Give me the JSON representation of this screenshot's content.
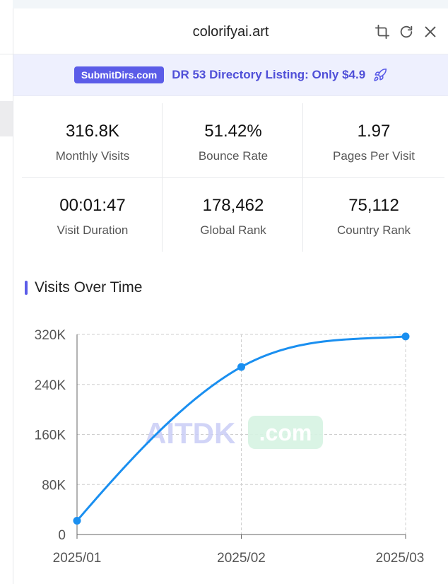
{
  "panel": {
    "title": "colorifyai.art"
  },
  "header_icons": [
    "crop-icon",
    "refresh-icon",
    "close-icon"
  ],
  "banner": {
    "badge": "SubmitDirs.com",
    "text": "DR 53 Directory Listing: Only $4.9",
    "icon": "rocket-icon"
  },
  "stats": [
    {
      "value": "316.8K",
      "label": "Monthly Visits"
    },
    {
      "value": "51.42%",
      "label": "Bounce Rate"
    },
    {
      "value": "1.97",
      "label": "Pages Per Visit"
    },
    {
      "value": "00:01:47",
      "label": "Visit Duration"
    },
    {
      "value": "178,462",
      "label": "Global Rank"
    },
    {
      "value": "75,112",
      "label": "Country Rank"
    }
  ],
  "section": {
    "title": "Visits Over Time"
  },
  "watermark": {
    "brand": "AITDK",
    "suffix": ".com"
  },
  "colors": {
    "accent": "#5b5ce8",
    "line": "#1a8ff0",
    "watermark_text": "#c9cdf6",
    "watermark_pill": "#d6f3e2"
  },
  "chart_data": {
    "type": "line",
    "categories": [
      "2025/01",
      "2025/02",
      "2025/03"
    ],
    "series": [
      {
        "values": [
          22000,
          268000,
          316800
        ]
      }
    ],
    "title": "Visits Over Time",
    "ylim": [
      0,
      320000
    ],
    "yticks": [
      0,
      80000,
      160000,
      240000,
      320000
    ],
    "ytick_labels": [
      "0",
      "80K",
      "160K",
      "240K",
      "320K"
    ],
    "grid": true
  }
}
